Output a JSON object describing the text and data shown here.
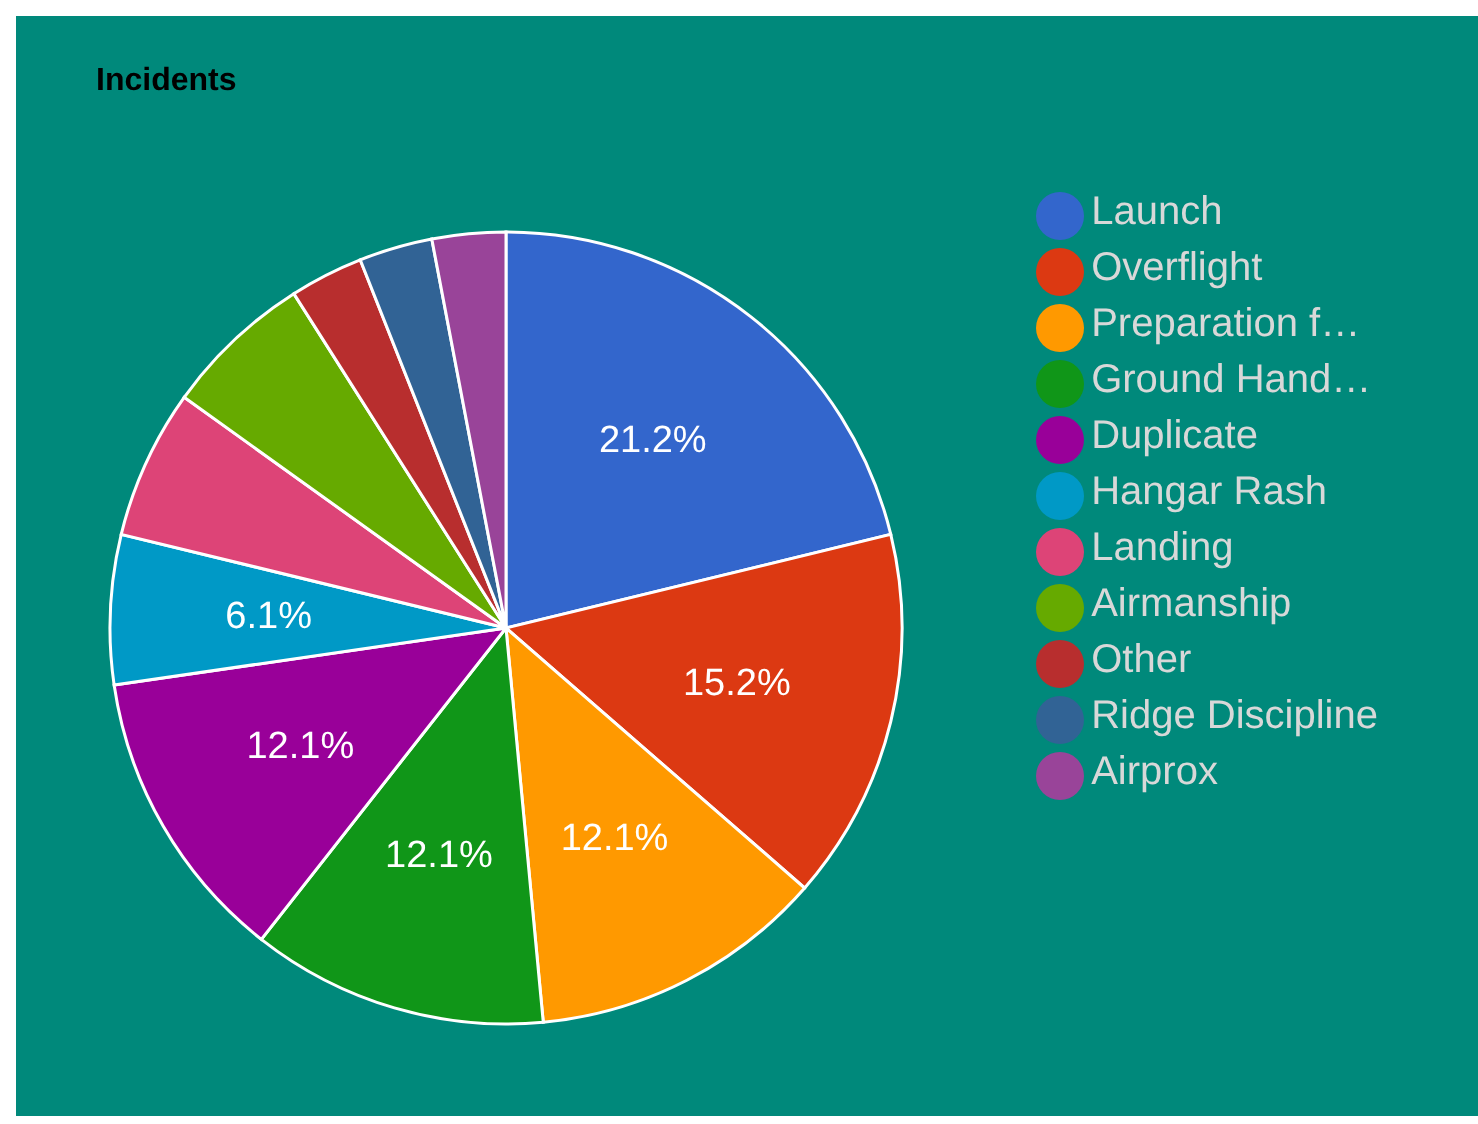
{
  "chart_data": {
    "type": "pie",
    "title": "Incidents",
    "categories": [
      "Launch",
      "Overflight",
      "Preparation f…",
      "Ground Hand…",
      "Duplicate",
      "Hangar Rash",
      "Landing",
      "Airmanship",
      "Other",
      "Ridge Discipline",
      "Airprox"
    ],
    "values": [
      21.2,
      15.2,
      12.1,
      12.1,
      12.1,
      6.1,
      6.1,
      6.1,
      3.0,
      3.0,
      3.0
    ],
    "value_labels": [
      "21.2%",
      "15.2%",
      "12.1%",
      "12.1%",
      "12.1%",
      "6.1%",
      null,
      null,
      null,
      null,
      null
    ],
    "colors": [
      "#3366cc",
      "#dc3912",
      "#ff9900",
      "#109618",
      "#990099",
      "#0099c6",
      "#dd4477",
      "#66aa00",
      "#b82e2e",
      "#316395",
      "#994499"
    ],
    "legend": "right"
  }
}
